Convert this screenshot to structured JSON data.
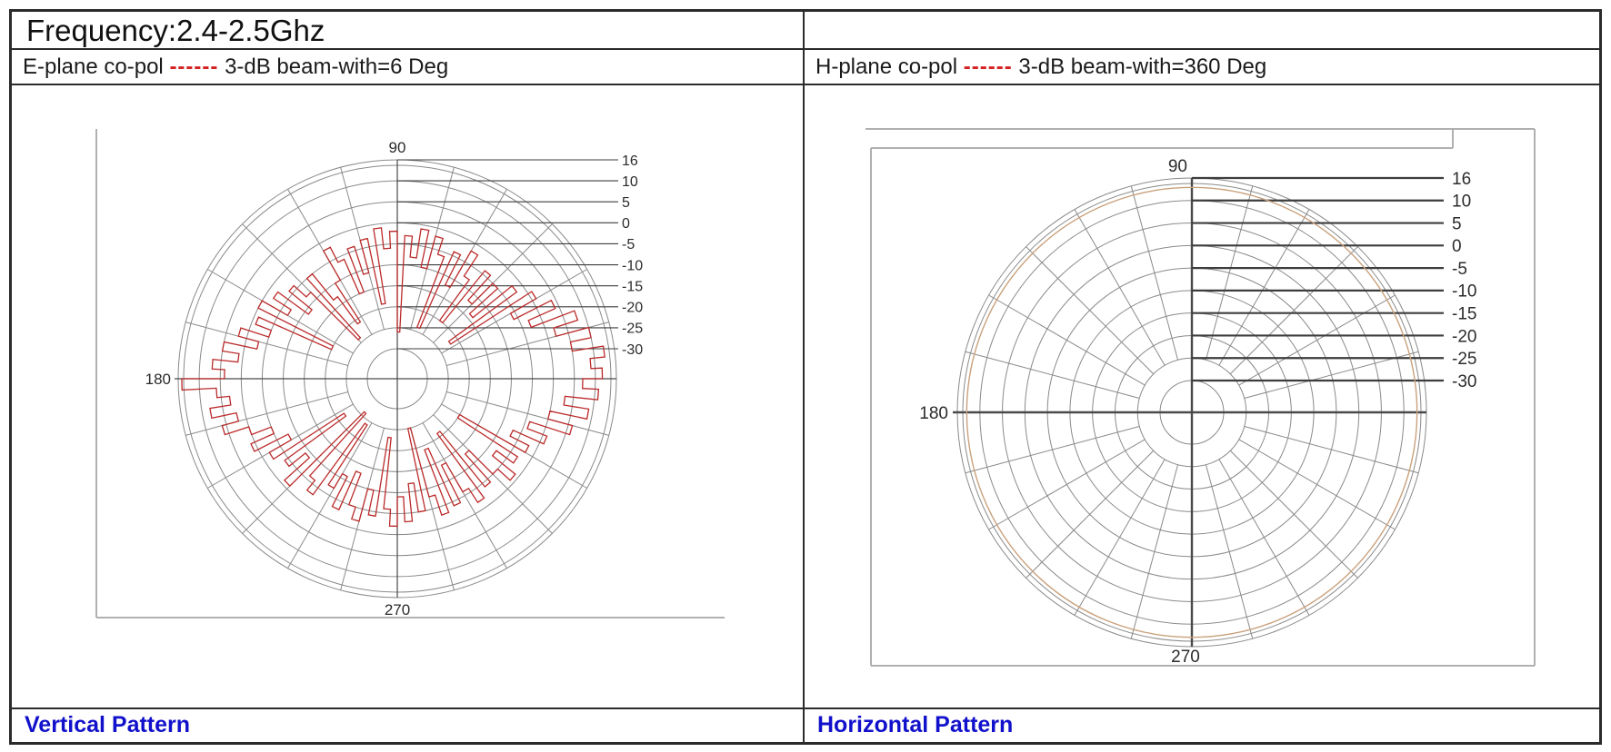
{
  "title": "Frequency:2.4-2.5Ghz",
  "left_panel": {
    "header": {
      "prefix": "E-plane co-pol",
      "dashes": "------",
      "suffix": "3-dB beam-with=6 Deg"
    },
    "caption": "Vertical Pattern"
  },
  "right_panel": {
    "header": {
      "prefix": "H-plane co-pol",
      "dashes": "------",
      "suffix": "3-dB beam-with=360 Deg"
    },
    "caption": "Horizontal Pattern"
  },
  "colors": {
    "table_border": "#2b2b2b",
    "caption_blue": "#1111cc",
    "dash_red": "#d42020",
    "grid_gray": "#8a8a8a",
    "axis_dark": "#4a4a4a",
    "eplane_trace": "#bb2a2a",
    "hplane_trace": "#c9a17c",
    "picture_frame": "#b0b0b0"
  },
  "chart_data": [
    {
      "type": "polar",
      "name": "E-plane co-pol radiation pattern",
      "caption": "Vertical Pattern",
      "beamwidth_label": "3-dB beam-with=6 Deg",
      "angle_tick_labels": [
        "90",
        "180",
        "270"
      ],
      "radial_tick_labels": [
        "16",
        "10",
        "5",
        "0",
        "-5",
        "-10",
        "-15",
        "-20",
        "-25",
        "-30"
      ],
      "radial_ticks_db": [
        16,
        10,
        5,
        0,
        -5,
        -10,
        -15,
        -20,
        -25,
        -30
      ],
      "r_axis_range_db": [
        -30,
        16
      ],
      "grid": {
        "spoke_step_deg": 15,
        "rings": 10,
        "outer_double_ring": true,
        "legend": "none"
      },
      "series": [
        {
          "name": "E-plane co-pol measured trace",
          "color": "#bb2a2a",
          "angle_start_deg": 0,
          "angle_step_deg": 3,
          "values_db": [
            12,
            9,
            13,
            5,
            10,
            2,
            8,
            -3,
            4,
            -6,
            1,
            -22,
            -2,
            -14,
            -5,
            -12,
            -4,
            -20,
            -8,
            -2,
            -12,
            -4,
            -24,
            -6,
            -2,
            -10,
            -1,
            -8,
            -3,
            -26,
            -2,
            -6,
            -1,
            -19,
            -3,
            -11,
            -4,
            -15,
            -6,
            -2,
            -10,
            -21,
            -13,
            -5,
            -24,
            -8,
            -4,
            -11,
            -2,
            -7,
            0,
            -20,
            -1,
            -5,
            2,
            -3,
            5,
            1,
            7,
            4,
            15,
            6,
            3,
            8,
            2,
            6,
            0,
            -5,
            1,
            -8,
            -2,
            -22,
            -4,
            -9,
            -1,
            -26,
            -6,
            -3,
            -24,
            -7,
            -11,
            -3,
            -13,
            -5,
            -2,
            -10,
            -4,
            -23,
            -6,
            -2,
            -9,
            -3,
            -12,
            -5,
            -25,
            -8,
            -3,
            -19,
            -4,
            -14,
            -6,
            -2,
            -21,
            -4,
            -13,
            -5,
            -1,
            -8,
            -3,
            -20,
            -2,
            -7,
            1,
            -4,
            6,
            0,
            9,
            3,
            11,
            7
          ]
        }
      ]
    },
    {
      "type": "polar",
      "name": "H-plane co-pol radiation pattern",
      "caption": "Horizontal Pattern",
      "beamwidth_label": "3-dB beam-with=360 Deg",
      "angle_tick_labels": [
        "90",
        "180",
        "270"
      ],
      "radial_tick_labels": [
        "16",
        "10",
        "5",
        "0",
        "-5",
        "-10",
        "-15",
        "-20",
        "-25",
        "-30"
      ],
      "radial_ticks_db": [
        16,
        10,
        5,
        0,
        -5,
        -10,
        -15,
        -20,
        -25,
        -30
      ],
      "r_axis_range_db": [
        -30,
        16
      ],
      "grid": {
        "spoke_step_deg": 15,
        "rings": 10,
        "outer_double_ring": true,
        "legend": "none"
      },
      "series": [
        {
          "name": "H-plane co-pol measured trace (omnidirectional)",
          "color": "#c9a17c",
          "constant_db": 13.5
        }
      ]
    }
  ]
}
